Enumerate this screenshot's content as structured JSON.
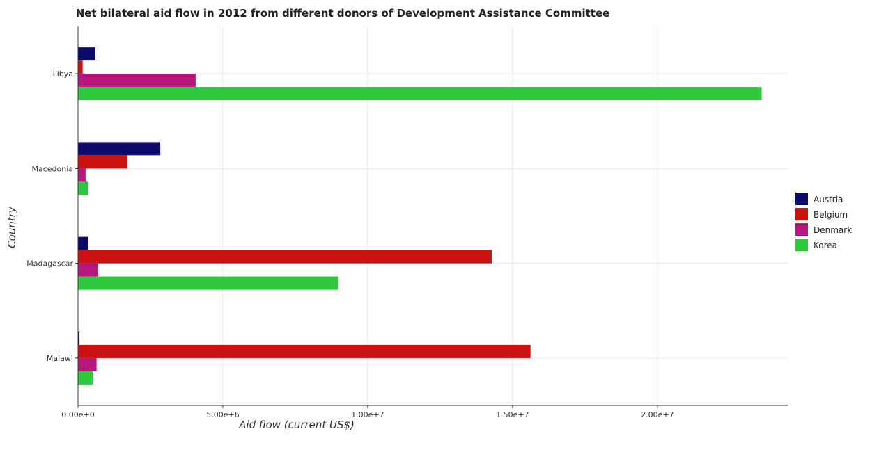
{
  "chart_data": {
    "type": "bar",
    "orientation": "horizontal",
    "title": "Net bilateral aid flow in 2012 from different donors of Development Assistance Committee",
    "xlabel": "Aid flow (current US$)",
    "ylabel": "Country",
    "categories": [
      "Libya",
      "Macedonia",
      "Madagascar",
      "Malawi"
    ],
    "xlim": [
      0,
      24500000
    ],
    "xticks": [
      0,
      5000000,
      10000000,
      15000000,
      20000000
    ],
    "xtick_labels": [
      "0.00e+0",
      "5.00e+6",
      "1.00e+7",
      "1.50e+7",
      "2.00e+7"
    ],
    "grid": true,
    "legend_position": "right",
    "series": [
      {
        "name": "Austria",
        "color": "#0d0a6e",
        "values": [
          600000,
          2840000,
          360000,
          50000
        ]
      },
      {
        "name": "Belgium",
        "color": "#cc1111",
        "values": [
          160000,
          1700000,
          14280000,
          15620000
        ]
      },
      {
        "name": "Denmark",
        "color": "#b5177f",
        "values": [
          4060000,
          260000,
          690000,
          640000
        ]
      },
      {
        "name": "Korea",
        "color": "#2ec83c",
        "values": [
          23600000,
          350000,
          8980000,
          510000
        ]
      }
    ]
  }
}
